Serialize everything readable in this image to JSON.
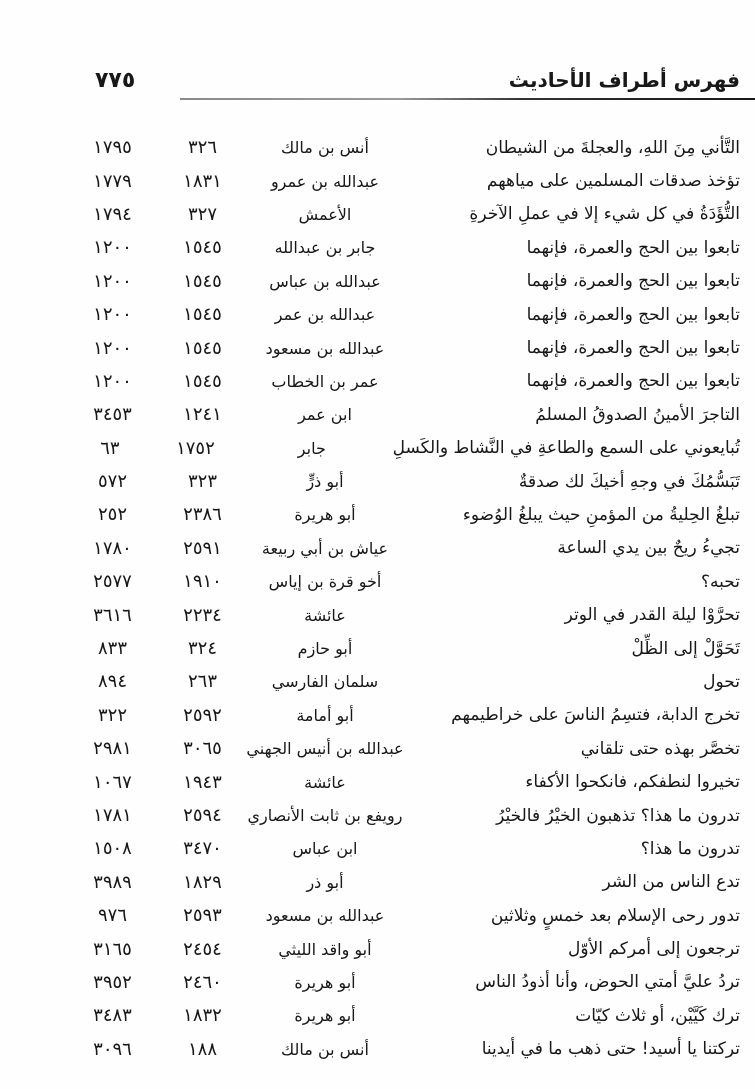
{
  "header": {
    "title": "فهرس أطراف الأحاديث",
    "page_number": "٧٧٥"
  },
  "table": {
    "rows": [
      {
        "hadith": "التَّأني مِنَ اللهِ، والعجلةَ من الشيطان",
        "narrator": "أنس بن مالك",
        "num1": "٣٢٦",
        "num2": "١٧٩٥"
      },
      {
        "hadith": "تؤخذ صدقات المسلمين على مياههم",
        "narrator": "عبدالله بن عمرو",
        "num1": "١٨٣١",
        "num2": "١٧٧٩"
      },
      {
        "hadith": "التُّؤَدَةُ في كل شيء إلا في عملِ الآخرةِ",
        "narrator": "الأعمش",
        "num1": "٣٢٧",
        "num2": "١٧٩٤"
      },
      {
        "hadith": "تابعوا بين الحج والعمرة، فإنهما",
        "narrator": "جابر بن عبدالله",
        "num1": "١٥٤٥",
        "num2": "١٢٠٠"
      },
      {
        "hadith": "تابعوا بين الحج والعمرة، فإنهما",
        "narrator": "عبدالله بن عباس",
        "num1": "١٥٤٥",
        "num2": "١٢٠٠"
      },
      {
        "hadith": "تابعوا بين الحج والعمرة، فإنهما",
        "narrator": "عبدالله بن عمر",
        "num1": "١٥٤٥",
        "num2": "١٢٠٠"
      },
      {
        "hadith": "تابعوا بين الحج والعمرة، فإنهما",
        "narrator": "عبدالله بن مسعود",
        "num1": "١٥٤٥",
        "num2": "١٢٠٠"
      },
      {
        "hadith": "تابعوا بين الحج والعمرة، فإنهما",
        "narrator": "عمر بن الخطاب",
        "num1": "١٥٤٥",
        "num2": "١٢٠٠"
      },
      {
        "hadith": "التاجرَ الأمينُ الصدوقُ المسلمُ",
        "narrator": "ابن عمر",
        "num1": "١٢٤١",
        "num2": "٣٤٥٣"
      },
      {
        "hadith": "تُبايعوني على السمع والطاعةِ في النَّشاط والكَسلِ",
        "narrator": "جابر",
        "num1": "١٧٥٢",
        "num2": "٦٣"
      },
      {
        "hadith": "تَبَسُّمُكَ في وجهِ أخيكَ لك صدقةٌ",
        "narrator": "أبو ذرٍّ",
        "num1": "٣٢٣",
        "num2": "٥٧٢"
      },
      {
        "hadith": "تبلغُ الحِليةُ من المؤمنِ حيث يبلغُ الوُضوء",
        "narrator": "أبو هريرة",
        "num1": "٢٣٨٦",
        "num2": "٢٥٢"
      },
      {
        "hadith": "تجيءُ ريحٌ بين يدي الساعة",
        "narrator": "عياش بن أبي ربيعة",
        "num1": "٢٥٩١",
        "num2": "١٧٨٠"
      },
      {
        "hadith": "تحبه؟",
        "narrator": "أخو قرة بن إياس",
        "num1": "١٩١٠",
        "num2": "٢٥٧٧"
      },
      {
        "hadith": "تحرَّوْا ليلة القدر في الوتر",
        "narrator": "عائشة",
        "num1": "٢٢٣٤",
        "num2": "٣٦١٦"
      },
      {
        "hadith": "تَحَوَّلْ إلى الظِّلْ",
        "narrator": "أبو حازم",
        "num1": "٣٢٤",
        "num2": "٨٣٣"
      },
      {
        "hadith": "تحول",
        "narrator": "سلمان الفارسي",
        "num1": "٢٦٣",
        "num2": "٨٩٤"
      },
      {
        "hadith": "تخرج الدابة، فتسِمُ الناسَ على خراطيمهم",
        "narrator": "أبو أمامة",
        "num1": "٢٥٩٢",
        "num2": "٣٢٢"
      },
      {
        "hadith": "تخصَّر بهذه حتى تلقاني",
        "narrator": "عبدالله بن أنيس الجهني",
        "num1": "٣٠٦٥",
        "num2": "٢٩٨١"
      },
      {
        "hadith": "تخيروا لنطفكم، فانكحوا الأكفاء",
        "narrator": "عائشة",
        "num1": "١٩٤٣",
        "num2": "١٠٦٧"
      },
      {
        "hadith": "تدرون ما هذا؟ تذهبون الخيْرُ فالخيْرُ",
        "narrator": "رويفع بن ثابت الأنصاري",
        "num1": "٢٥٩٤",
        "num2": "١٧٨١"
      },
      {
        "hadith": "تدرون ما هذا؟",
        "narrator": "ابن عباس",
        "num1": "٣٤٧٠",
        "num2": "١٥٠٨"
      },
      {
        "hadith": "تدع الناس من الشر",
        "narrator": "أبو ذر",
        "num1": "١٨٢٩",
        "num2": "٣٩٨٩"
      },
      {
        "hadith": "تدور رحى الإسلام بعد خمسٍ وثلاثين",
        "narrator": "عبدالله بن مسعود",
        "num1": "٢٥٩٣",
        "num2": "٩٧٦"
      },
      {
        "hadith": "ترجعون إلى أمركم الأوّل",
        "narrator": "أبو واقد الليثي",
        "num1": "٢٤٥٤",
        "num2": "٣١٦٥"
      },
      {
        "hadith": "تردُ عليَّ أمتي الحوض، وأنا أذودُ الناس",
        "narrator": "أبو هريرة",
        "num1": "٢٤٦٠",
        "num2": "٣٩٥٢"
      },
      {
        "hadith": "ترك كَيَّيْن، أو ثلاث كيّات",
        "narrator": "أبو هريرة",
        "num1": "١٨٣٢",
        "num2": "٣٤٨٣"
      },
      {
        "hadith": "تركتنا يا أسيد! حتى ذهب ما في أيدينا",
        "narrator": "أنس بن مالك",
        "num1": "١٨٨",
        "num2": "٣٠٩٦"
      }
    ]
  }
}
